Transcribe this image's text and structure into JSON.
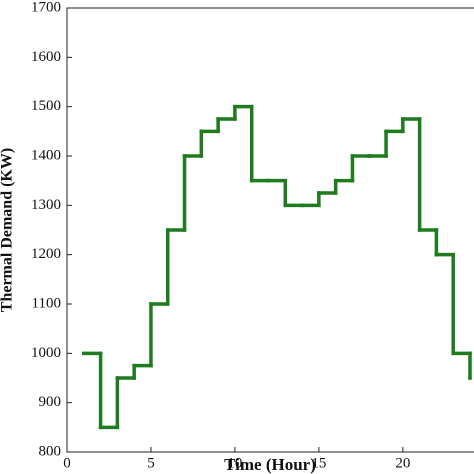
{
  "chart_data": {
    "type": "step",
    "xlabel": "Time (Hour)",
    "ylabel": "Thermal Demand (KW)",
    "x": [
      1,
      2,
      3,
      4,
      5,
      6,
      7,
      8,
      9,
      10,
      11,
      12,
      13,
      14,
      15,
      16,
      17,
      18,
      19,
      20,
      21,
      22,
      23,
      24
    ],
    "series": [
      {
        "color": "#1e7b1e",
        "values": [
          1000,
          850,
          950,
          975,
          1100,
          1250,
          1400,
          1450,
          1475,
          1500,
          1350,
          1350,
          1300,
          1300,
          1325,
          1350,
          1400,
          1400,
          1450,
          1475,
          1250,
          1200,
          1000,
          950
        ]
      }
    ],
    "xlim": [
      0,
      24
    ],
    "xticks": [
      0,
      5,
      10,
      15,
      20
    ],
    "ylim": [
      800,
      1700
    ],
    "yticks": [
      800,
      900,
      1000,
      1100,
      1200,
      1300,
      1400,
      1500,
      1600,
      1700
    ]
  }
}
